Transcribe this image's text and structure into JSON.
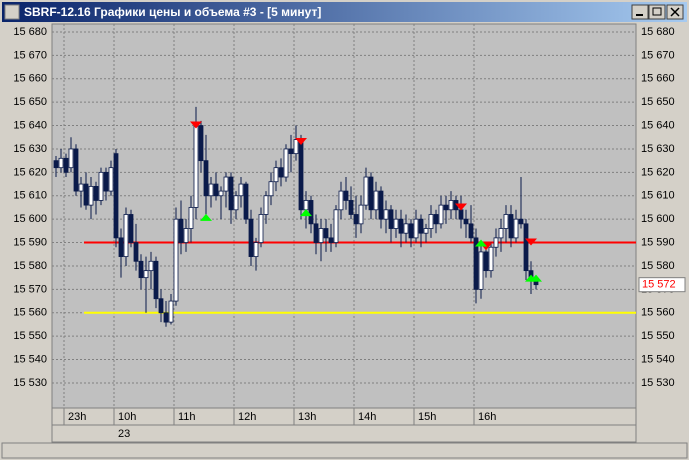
{
  "window_title": "SBRF-12.16 Графики цены и объема #3 - [5 минут]",
  "chart_data": {
    "type": "candlestick",
    "categories": [
      null,
      null,
      "23h",
      null,
      null,
      null,
      null,
      null,
      null,
      null,
      null,
      null,
      "10h",
      null,
      null,
      null,
      null,
      null,
      null,
      null,
      null,
      null,
      null,
      null,
      "11h",
      null,
      null,
      null,
      null,
      null,
      null,
      null,
      null,
      null,
      null,
      null,
      "12h",
      null,
      null,
      null,
      null,
      null,
      null,
      null,
      null,
      null,
      null,
      null,
      "13h",
      null,
      null,
      null,
      null,
      null,
      null,
      null,
      null,
      null,
      null,
      null,
      "14h",
      null,
      null,
      null,
      null,
      null,
      null,
      null,
      null,
      null,
      null,
      null,
      "15h",
      null,
      null,
      null,
      null,
      null,
      null,
      null,
      null,
      null,
      null,
      null,
      "16h",
      null,
      null,
      null,
      null,
      null,
      null,
      null,
      null,
      null,
      null,
      null,
      null
    ],
    "date_categories": [
      null,
      null,
      null,
      null,
      null,
      null,
      null,
      null,
      null,
      null,
      null,
      null,
      "23",
      null,
      null,
      null,
      null,
      null,
      null,
      null,
      null,
      null,
      null,
      null,
      null,
      null,
      null,
      null,
      null,
      null,
      null,
      null,
      null,
      null,
      null,
      null,
      null,
      null,
      null,
      null,
      null,
      null,
      null,
      null,
      null,
      null,
      null,
      null,
      null,
      null,
      null,
      null,
      null,
      null,
      null,
      null,
      null,
      null,
      null,
      null,
      null,
      null,
      null,
      null,
      null,
      null,
      null,
      null,
      null,
      null,
      null,
      null,
      null,
      null,
      null,
      null,
      null,
      null,
      null,
      null,
      null,
      null,
      null,
      null,
      null,
      null,
      null,
      null,
      null,
      null,
      null,
      null,
      null,
      null,
      null,
      null,
      null
    ],
    "open": [
      15625,
      15622,
      15626,
      15622,
      15630,
      15612,
      15615,
      15606,
      15614,
      15608,
      15620,
      15612,
      15628,
      15592,
      15584,
      15602,
      15590,
      15582,
      15575,
      15578,
      15582,
      15566,
      15560,
      15556,
      15565,
      15600,
      15590,
      15596,
      15605,
      15640,
      15625,
      15610,
      15615,
      15610,
      15612,
      15618,
      15604,
      15610,
      15615,
      15600,
      15584,
      15590,
      15602,
      15610,
      15616,
      15622,
      15618,
      15630,
      15628,
      15634,
      15604,
      15608,
      15598,
      15590,
      15596,
      15592,
      15590,
      15604,
      15612,
      15608,
      15602,
      15598,
      15606,
      15618,
      15604,
      15612,
      15600,
      15604,
      15596,
      15600,
      15594,
      15598,
      15592,
      15600,
      15594,
      15596,
      15602,
      15598,
      15606,
      15604,
      15608,
      15604,
      15600,
      15598,
      15592,
      15570,
      15586,
      15578,
      15588,
      15592,
      15596,
      15602,
      15592,
      15600,
      15598,
      15578,
      15574
    ],
    "high": [
      15627,
      15630,
      15628,
      15635,
      15632,
      15618,
      15620,
      15618,
      15616,
      15622,
      15622,
      15625,
      15630,
      15596,
      15605,
      15604,
      15598,
      15585,
      15584,
      15586,
      15584,
      15570,
      15565,
      15568,
      15605,
      15608,
      15600,
      15610,
      15648,
      15642,
      15636,
      15618,
      15620,
      15614,
      15620,
      15620,
      15612,
      15618,
      15616,
      15604,
      15592,
      15605,
      15612,
      15620,
      15625,
      15626,
      15632,
      15636,
      15640,
      15636,
      15612,
      15610,
      15602,
      15600,
      15600,
      15598,
      15606,
      15616,
      15618,
      15614,
      15610,
      15610,
      15622,
      15620,
      15616,
      15614,
      15608,
      15606,
      15604,
      15604,
      15602,
      15600,
      15604,
      15602,
      15598,
      15606,
      15604,
      15610,
      15610,
      15612,
      15610,
      15610,
      15604,
      15606,
      15596,
      15590,
      15588,
      15590,
      15596,
      15600,
      15606,
      15606,
      15604,
      15618,
      15600,
      15582,
      15576
    ],
    "low": [
      15618,
      15620,
      15618,
      15620,
      15610,
      15605,
      15604,
      15600,
      15602,
      15606,
      15608,
      15610,
      15588,
      15575,
      15580,
      15588,
      15578,
      15570,
      15560,
      15570,
      15562,
      15556,
      15554,
      15555,
      15563,
      15585,
      15586,
      15590,
      15600,
      15620,
      15600,
      15605,
      15608,
      15600,
      15605,
      15598,
      15600,
      15605,
      15598,
      15580,
      15578,
      15588,
      15598,
      15606,
      15612,
      15614,
      15616,
      15620,
      15625,
      15600,
      15596,
      15594,
      15585,
      15582,
      15586,
      15586,
      15588,
      15600,
      15604,
      15600,
      15592,
      15594,
      15604,
      15600,
      15600,
      15596,
      15594,
      15590,
      15592,
      15588,
      15590,
      15588,
      15590,
      15588,
      15590,
      15592,
      15594,
      15596,
      15598,
      15600,
      15600,
      15596,
      15592,
      15590,
      15564,
      15566,
      15575,
      15575,
      15584,
      15586,
      15590,
      15588,
      15590,
      15596,
      15574,
      15568,
      15570
    ],
    "close": [
      15622,
      15626,
      15620,
      15630,
      15612,
      15615,
      15606,
      15614,
      15608,
      15620,
      15612,
      15622,
      15592,
      15584,
      15602,
      15590,
      15582,
      15575,
      15578,
      15582,
      15566,
      15560,
      15556,
      15565,
      15600,
      15590,
      15596,
      15605,
      15640,
      15625,
      15610,
      15615,
      15610,
      15612,
      15618,
      15604,
      15610,
      15615,
      15600,
      15584,
      15590,
      15602,
      15610,
      15616,
      15622,
      15618,
      15630,
      15628,
      15634,
      15604,
      15608,
      15598,
      15590,
      15596,
      15592,
      15590,
      15604,
      15612,
      15608,
      15602,
      15598,
      15606,
      15618,
      15604,
      15612,
      15600,
      15604,
      15596,
      15600,
      15594,
      15598,
      15592,
      15600,
      15594,
      15596,
      15602,
      15598,
      15606,
      15604,
      15608,
      15604,
      15600,
      15598,
      15592,
      15570,
      15586,
      15578,
      15588,
      15592,
      15596,
      15602,
      15592,
      15600,
      15598,
      15578,
      15574,
      15572
    ],
    "color": "#0a1a4a",
    "ylim": [
      15519.3,
      15683.4
    ],
    "yticks": [
      {
        "value": 15530,
        "label": "15 530"
      },
      {
        "value": 15540,
        "label": "15 540"
      },
      {
        "value": 15550,
        "label": "15 550"
      },
      {
        "value": 15560,
        "label": "15 560"
      },
      {
        "value": 15570,
        "label": "15 570"
      },
      {
        "value": 15580,
        "label": "15 580"
      },
      {
        "value": 15590,
        "label": "15 590"
      },
      {
        "value": 15600,
        "label": "15 600"
      },
      {
        "value": 15610,
        "label": "15 610"
      },
      {
        "value": 15620,
        "label": "15 620"
      },
      {
        "value": 15630,
        "label": "15 630"
      },
      {
        "value": 15640,
        "label": "15 640"
      },
      {
        "value": 15650,
        "label": "15 650"
      },
      {
        "value": 15660,
        "label": "15 660"
      },
      {
        "value": 15670,
        "label": "15 670"
      },
      {
        "value": 15680,
        "label": "15 680"
      }
    ],
    "grid": true,
    "levels": [
      {
        "value": 15590,
        "color": "#ff0000"
      },
      {
        "value": 15560,
        "color": "#ffff00"
      }
    ],
    "last_price": {
      "value": 15572,
      "label": "15 572"
    },
    "sell_signals": [
      {
        "i": 28,
        "price": 15640
      },
      {
        "i": 49,
        "price": 15633
      },
      {
        "i": 81,
        "price": 15605
      },
      {
        "i": 86,
        "price": 15588
      },
      {
        "i": 95,
        "price": 15590
      }
    ],
    "buy_signals": [
      {
        "i": 30,
        "price": 15601
      },
      {
        "i": 50,
        "price": 15603
      },
      {
        "i": 85,
        "price": 15590
      },
      {
        "i": 95,
        "price": 15575
      },
      {
        "i": 96,
        "price": 15575
      }
    ]
  }
}
